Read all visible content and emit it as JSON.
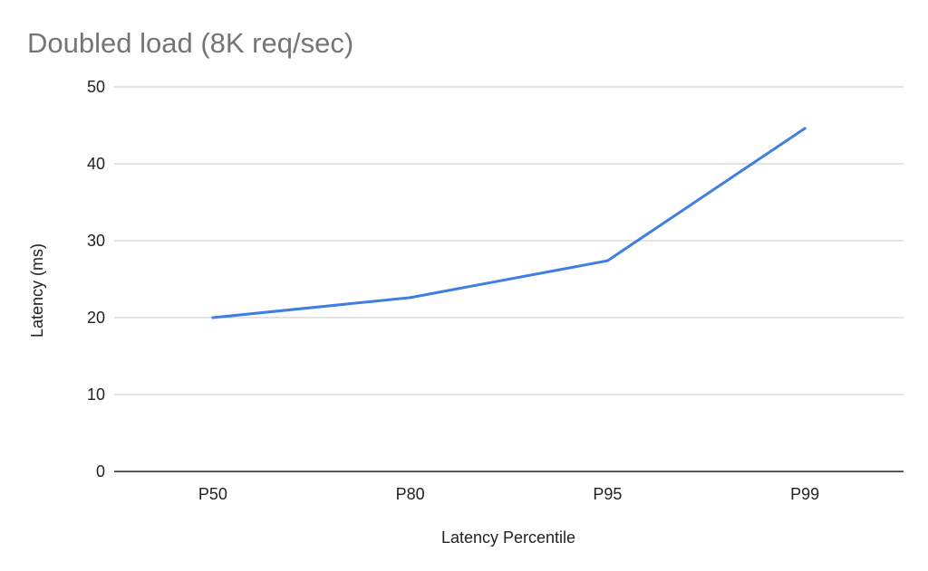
{
  "chart_data": {
    "type": "line",
    "title": "Doubled load (8K req/sec)",
    "xlabel": "Latency Percentile",
    "ylabel": "Latency (ms)",
    "categories": [
      "P50",
      "P80",
      "P95",
      "P99"
    ],
    "series": [
      {
        "values": [
          20.0,
          22.6,
          27.4,
          44.6
        ],
        "color": "#3f7fe3"
      }
    ],
    "ylim": [
      0,
      50
    ],
    "yticks": [
      0,
      10,
      20,
      30,
      40,
      50
    ],
    "grid": true,
    "legend": "none"
  }
}
